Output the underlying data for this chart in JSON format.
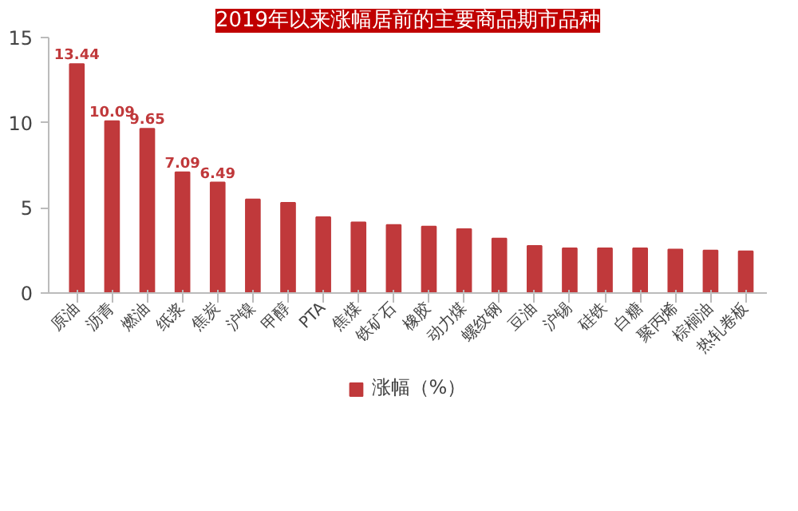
{
  "chart_data": {
    "type": "bar",
    "title": "2019年以来涨幅居前的主要商品期市品种",
    "categories": [
      "原油",
      "沥青",
      "燃油",
      "纸浆",
      "焦炭",
      "沪镍",
      "甲醇",
      "PTA",
      "焦煤",
      "铁矿石",
      "橡胶",
      "动力煤",
      "螺纹钢",
      "豆油",
      "沪锡",
      "硅铁",
      "白糖",
      "聚丙烯",
      "棕榈油",
      "热轧卷板"
    ],
    "series": [
      {
        "name": "涨幅（%）",
        "color": "#c0393b",
        "values": [
          13.44,
          10.09,
          9.65,
          7.09,
          6.49,
          5.5,
          5.3,
          4.45,
          4.15,
          4.0,
          3.9,
          3.75,
          3.2,
          2.77,
          2.62,
          2.62,
          2.62,
          2.55,
          2.5,
          2.45
        ],
        "value_labels": [
          "13.44",
          "10.09",
          "9.65",
          "7.09",
          "6.49",
          null,
          null,
          null,
          null,
          null,
          null,
          null,
          null,
          null,
          null,
          null,
          null,
          null,
          null,
          null
        ]
      }
    ],
    "ylim": [
      0,
      15
    ],
    "yticks": [
      0,
      5,
      10,
      15
    ],
    "grid": false,
    "legend": "bottom"
  }
}
